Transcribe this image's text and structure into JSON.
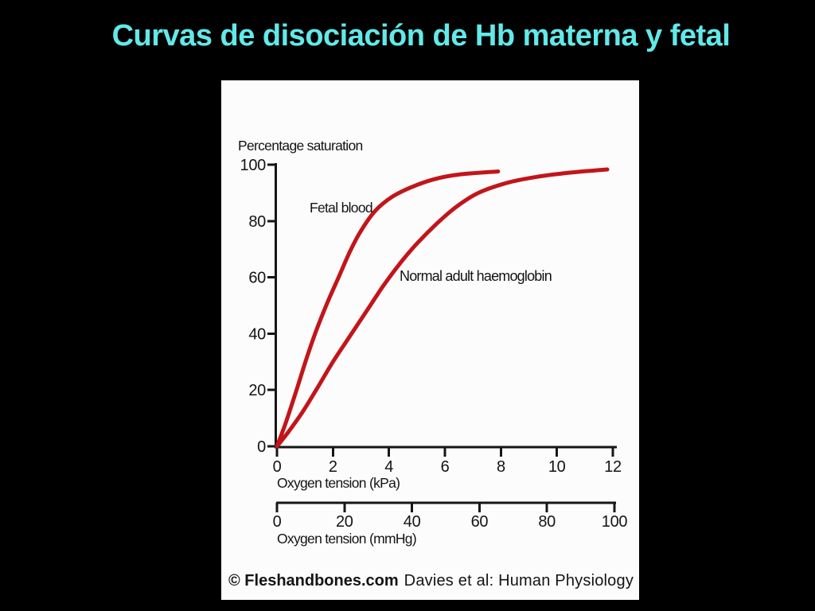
{
  "slide": {
    "title": "Curvas de disociación de Hb materna y fetal"
  },
  "colors": {
    "background": "#000000",
    "title_text": "#62E9E9",
    "panel": "#FCFCFC",
    "curve_red": "#C2151A",
    "axis_ink": "#161616"
  },
  "chart_data": {
    "type": "line",
    "title": "",
    "ylabel": "Percentage saturation",
    "ylim": [
      0,
      100
    ],
    "y_ticks": [
      0,
      20,
      40,
      60,
      80,
      100
    ],
    "grid": false,
    "legend": "inline-annotations",
    "x_axes": [
      {
        "label": "Oxygen tension (kPa)",
        "ticks": [
          0,
          2,
          4,
          6,
          8,
          10,
          12
        ],
        "range": [
          0,
          12
        ]
      },
      {
        "label": "Oxygen tension (mmHg)",
        "ticks": [
          0,
          20,
          40,
          60,
          80,
          100
        ],
        "range": [
          0,
          100
        ]
      }
    ],
    "series": [
      {
        "name": "Fetal blood",
        "color": "#C2151A",
        "x_unit": "kPa",
        "points": [
          [
            0,
            0
          ],
          [
            0.3,
            8
          ],
          [
            0.7,
            20
          ],
          [
            1.05,
            31
          ],
          [
            1.4,
            41
          ],
          [
            1.8,
            51
          ],
          [
            2.2,
            60
          ],
          [
            2.6,
            69
          ],
          [
            3.0,
            76.5
          ],
          [
            3.5,
            83.5
          ],
          [
            4.1,
            88.5
          ],
          [
            4.8,
            92
          ],
          [
            5.6,
            94.8
          ],
          [
            6.5,
            96.5
          ],
          [
            7.9,
            97.6
          ]
        ]
      },
      {
        "name": "Normal adult haemoglobin",
        "color": "#C2151A",
        "x_unit": "kPa",
        "points": [
          [
            0,
            0
          ],
          [
            0.4,
            5
          ],
          [
            0.9,
            12
          ],
          [
            1.4,
            20
          ],
          [
            2.0,
            30
          ],
          [
            2.6,
            39
          ],
          [
            3.2,
            48
          ],
          [
            3.8,
            57
          ],
          [
            4.4,
            65
          ],
          [
            5.0,
            72
          ],
          [
            5.7,
            79
          ],
          [
            6.4,
            85
          ],
          [
            7.2,
            90
          ],
          [
            8.2,
            93.5
          ],
          [
            9.3,
            95.7
          ],
          [
            10.5,
            97.2
          ],
          [
            11.8,
            98.3
          ]
        ]
      }
    ]
  },
  "footer": {
    "credit_bold": "© Fleshandbones.com",
    "credit_text": "Davies et al: Human Physiology"
  }
}
